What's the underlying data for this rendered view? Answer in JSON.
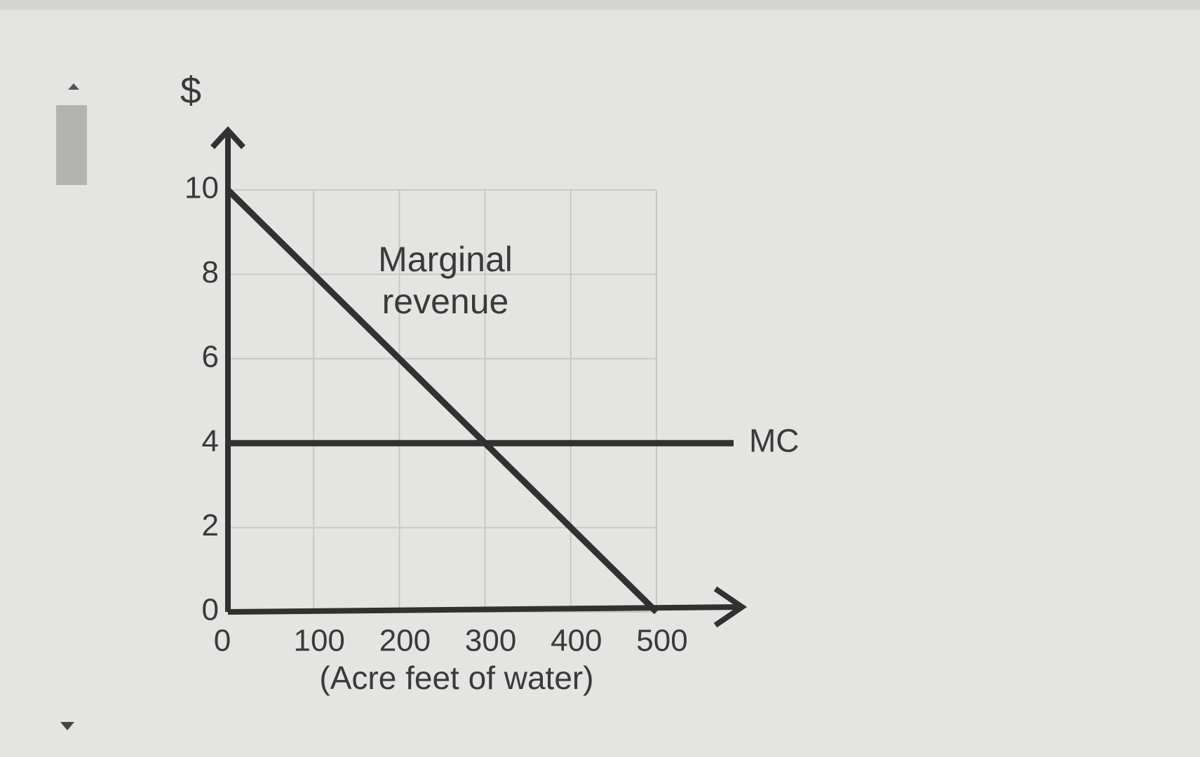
{
  "chart_data": {
    "type": "line",
    "ylabel": "$",
    "xlabel": "(Acre feet of water)",
    "xlim": [
      0,
      500
    ],
    "xticks": [
      0,
      100,
      200,
      300,
      400,
      500
    ],
    "ylim": [
      0,
      10
    ],
    "yticks": [
      0,
      2,
      4,
      6,
      8,
      10
    ],
    "grid": true,
    "series": [
      {
        "name": "Marginal revenue",
        "color": "#2f3133",
        "x": [
          0,
          500
        ],
        "values": [
          10,
          0
        ]
      },
      {
        "name": "MC",
        "color": "#2f3133",
        "x": [
          0,
          590
        ],
        "values": [
          4,
          4
        ]
      }
    ]
  }
}
